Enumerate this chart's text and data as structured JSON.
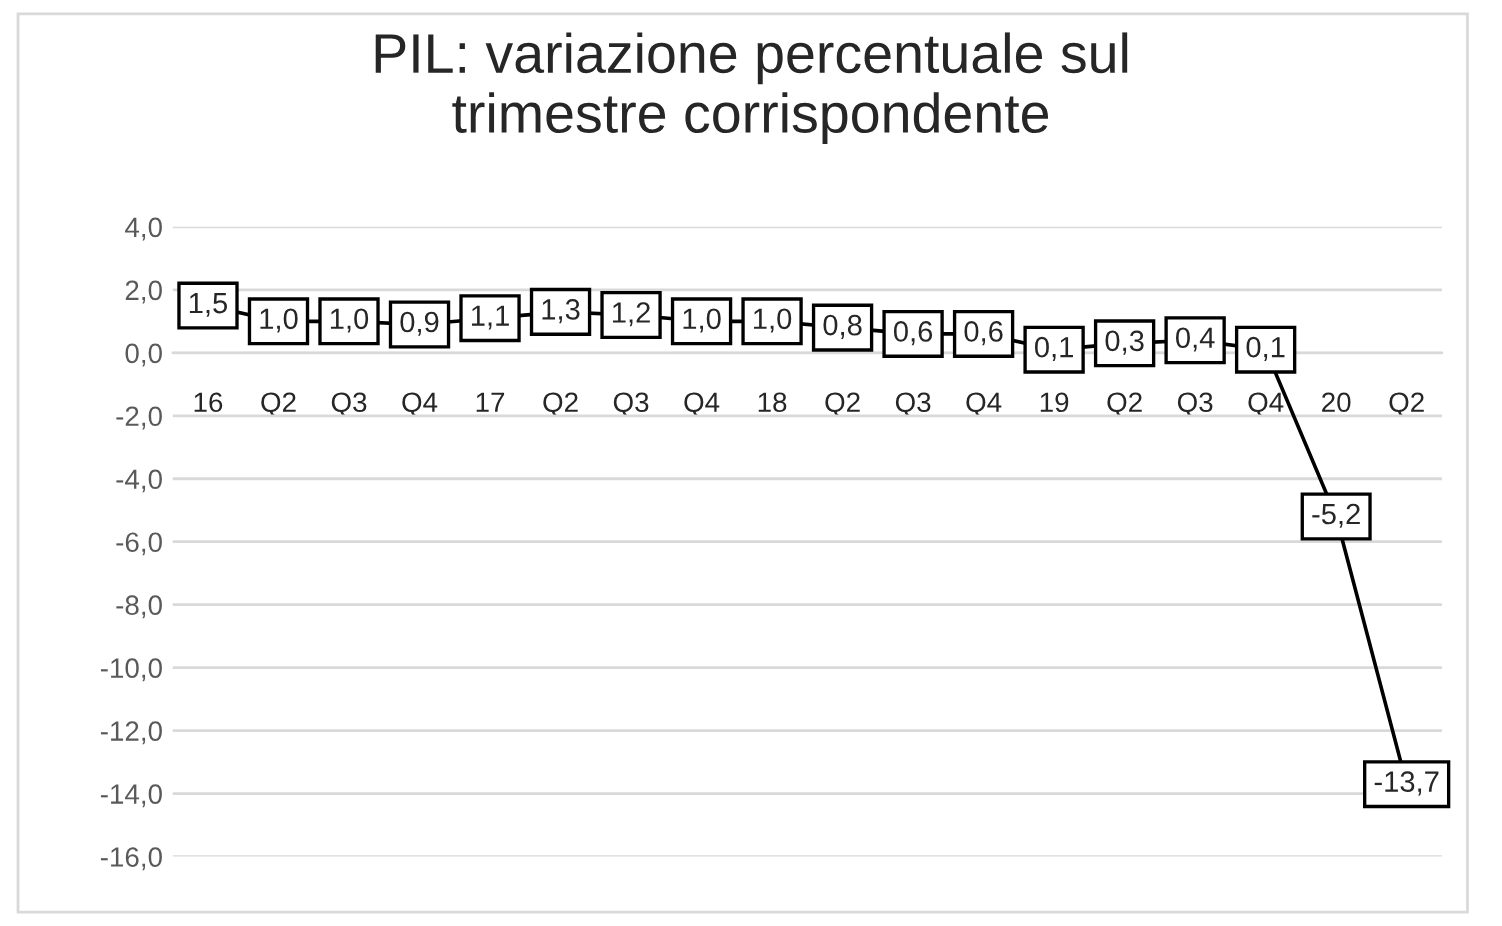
{
  "chart_data": {
    "type": "line",
    "title": "PIL: variazione percentuale sul\ntrimestre corrispondente",
    "categories": [
      "16",
      "Q2",
      "Q3",
      "Q4",
      "17",
      "Q2",
      "Q3",
      "Q4",
      "18",
      "Q2",
      "Q3",
      "Q4",
      "19",
      "Q2",
      "Q3",
      "Q4",
      "20",
      "Q2"
    ],
    "series": [
      {
        "color": "#000000",
        "values": [
          1.5,
          1.0,
          1.0,
          0.9,
          1.1,
          1.3,
          1.2,
          1.0,
          1.0,
          0.8,
          0.6,
          0.6,
          0.1,
          0.3,
          0.4,
          0.1,
          -5.2,
          -13.7
        ],
        "value_labels": [
          "1,5",
          "1,0",
          "1,0",
          "0,9",
          "1,1",
          "1,3",
          "1,2",
          "1,0",
          "1,0",
          "0,8",
          "0,6",
          "0,6",
          "0,1",
          "0,3",
          "0,4",
          "0,1",
          "-5,2",
          "-13,7"
        ]
      }
    ],
    "ylim": [
      -16,
      4
    ],
    "yticks": [
      {
        "value": 4,
        "label": "4,0"
      },
      {
        "value": 2,
        "label": "2,0"
      },
      {
        "value": 0,
        "label": "0,0"
      },
      {
        "value": -2,
        "label": "-2,0"
      },
      {
        "value": -4,
        "label": "-4,0"
      },
      {
        "value": -6,
        "label": "-6,0"
      },
      {
        "value": -8,
        "label": "-8,0"
      },
      {
        "value": -10,
        "label": "-10,0"
      },
      {
        "value": -12,
        "label": "-12,0"
      },
      {
        "value": -14,
        "label": "-14,0"
      },
      {
        "value": -16,
        "label": "-16,0"
      }
    ],
    "grid": "y",
    "marker": "square",
    "line_style": "solid"
  }
}
